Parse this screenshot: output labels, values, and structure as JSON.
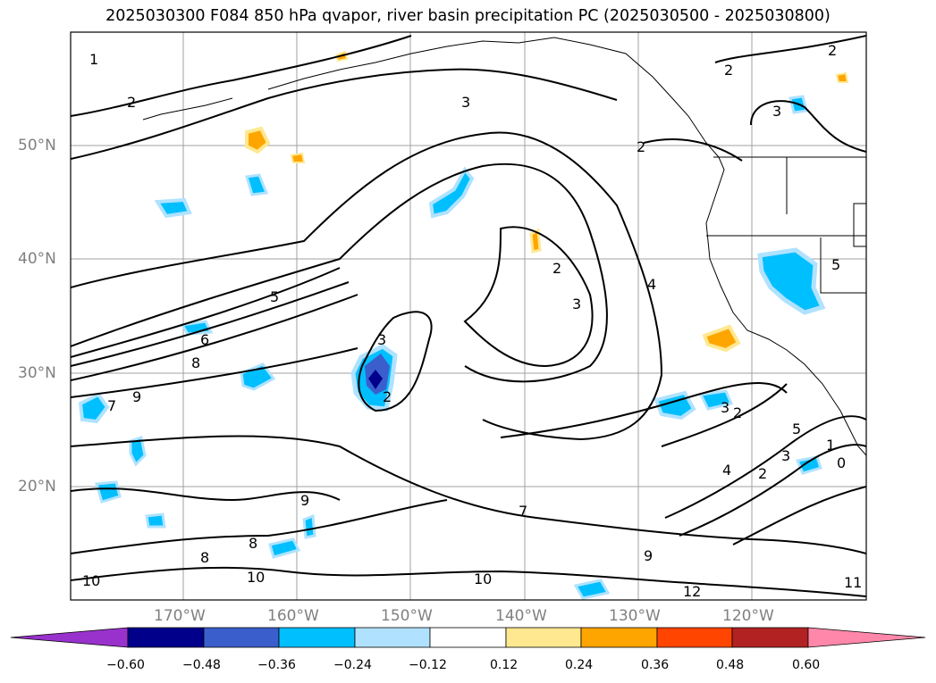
{
  "title": "2025030300 F084 850 hPa qvapor, river basin precipitation PC (2025030500 - 2025030800)",
  "lat_labels": [
    "50°N",
    "40°N",
    "30°N",
    "20°N"
  ],
  "lon_labels": [
    "170°W",
    "160°W",
    "150°W",
    "140°W",
    "130°W",
    "120°W"
  ],
  "colorbar": {
    "tick_labels": [
      "−0.60",
      "−0.48",
      "−0.36",
      "−0.24",
      "−0.12",
      "0.12",
      "0.24",
      "0.36",
      "0.48",
      "0.60"
    ],
    "colors": [
      "#9932cc",
      "#00008b",
      "#3a5fcd",
      "#00bfff",
      "#b0e2ff",
      "#ffffff",
      "#ffe890",
      "#ffa500",
      "#ff4500",
      "#b22222",
      "#ff88aa"
    ]
  },
  "contour_labels": [
    "1",
    "2",
    "3",
    "2",
    "2",
    "3",
    "2",
    "3",
    "4",
    "5",
    "6",
    "8",
    "9",
    "7",
    "9",
    "8",
    "8",
    "10",
    "10",
    "10",
    "7",
    "9",
    "12",
    "11",
    "3",
    "2",
    "5",
    "2",
    "4",
    "3",
    "2",
    "1",
    "0",
    "5",
    "3",
    "2"
  ]
}
